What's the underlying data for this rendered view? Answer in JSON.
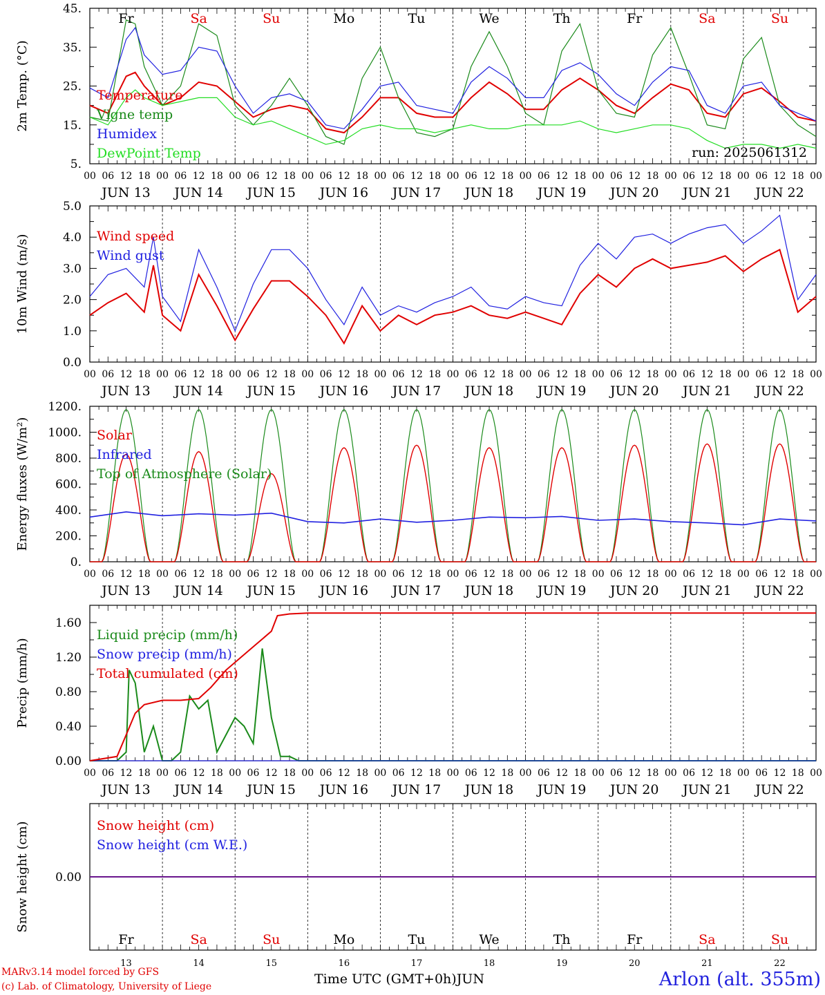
{
  "chart_data": {
    "type": "line",
    "run_label": "run: 2025061312",
    "footer": {
      "model": "MARv3.14 model forced by GFS",
      "copyright": "(c) Lab. of Climatology, University of Liege",
      "station": "Arlon (alt. 355m)",
      "xlabel": "Time UTC (GMT+0h)JUN"
    },
    "days": [
      {
        "date": "JUN 13",
        "num": "13",
        "dow": "Fr",
        "weekend": false
      },
      {
        "date": "JUN 14",
        "num": "14",
        "dow": "Sa",
        "weekend": true
      },
      {
        "date": "JUN 15",
        "num": "15",
        "dow": "Su",
        "weekend": true
      },
      {
        "date": "JUN 16",
        "num": "16",
        "dow": "Mo",
        "weekend": false
      },
      {
        "date": "JUN 17",
        "num": "17",
        "dow": "Tu",
        "weekend": false
      },
      {
        "date": "JUN 18",
        "num": "18",
        "dow": "We",
        "weekend": false
      },
      {
        "date": "JUN 19",
        "num": "19",
        "dow": "Th",
        "weekend": false
      },
      {
        "date": "JUN 20",
        "num": "20",
        "dow": "Fr",
        "weekend": false
      },
      {
        "date": "JUN 21",
        "num": "21",
        "dow": "Sa",
        "weekend": true
      },
      {
        "date": "JUN 22",
        "num": "22",
        "dow": "Su",
        "weekend": true
      }
    ],
    "hour_ticks": [
      "00",
      "06",
      "12",
      "18"
    ],
    "colors": {
      "red": "#e00000",
      "green": "#1a8a1a",
      "blue": "#2020e0",
      "lime": "#22dd22",
      "weekend": "#e00000"
    },
    "panels": [
      {
        "ylabel": "2m Temp. (°C)",
        "ylim": [
          5,
          45
        ],
        "yticks": [
          5,
          15,
          25,
          35,
          45
        ],
        "ytick_labels": [
          "5.",
          "15.",
          "25.",
          "35.",
          "45."
        ],
        "series": [
          {
            "name": "Temperature",
            "color": "#e00000",
            "x": [
              0,
              6,
              12,
              15,
              18,
              24,
              30,
              36,
              42,
              48,
              54,
              60,
              66,
              72,
              78,
              84,
              90,
              96,
              102,
              108,
              114,
              120,
              126,
              132,
              138,
              144,
              150,
              156,
              162,
              168,
              174,
              180,
              186,
              192,
              198,
              204,
              210,
              216,
              222,
              228,
              234,
              240
            ],
            "y": [
              20,
              18,
              27.5,
              28.5,
              25,
              20,
              22,
              26,
              25,
              21,
              17,
              19,
              20,
              19,
              14,
              13,
              17,
              22,
              22,
              18,
              17,
              17,
              22,
              26,
              23,
              19,
              19,
              24,
              27,
              24,
              20,
              18,
              22,
              25.5,
              24,
              18,
              17,
              23,
              24.5,
              21,
              17,
              16
            ]
          },
          {
            "name": "Vigne temp",
            "color": "#1a8a1a",
            "x": [
              0,
              6,
              12,
              15,
              18,
              24,
              30,
              36,
              42,
              48,
              54,
              60,
              66,
              72,
              78,
              84,
              90,
              96,
              102,
              108,
              114,
              120,
              126,
              132,
              138,
              144,
              150,
              156,
              162,
              168,
              174,
              180,
              186,
              192,
              198,
              204,
              210,
              216,
              222,
              228,
              234,
              240
            ],
            "y": [
              17,
              16,
              42,
              41,
              30,
              20,
              25,
              41,
              38,
              20,
              15,
              20,
              27,
              20,
              12,
              10,
              27,
              35,
              22,
              13,
              12,
              14,
              30,
              39,
              30,
              18,
              15,
              34,
              41,
              24,
              18,
              17,
              33,
              40,
              28,
              15,
              14,
              32,
              37.5,
              20,
              15,
              12
            ]
          },
          {
            "name": "Humidex",
            "color": "#2020e0",
            "x": [
              0,
              6,
              12,
              15,
              18,
              24,
              30,
              36,
              42,
              48,
              54,
              60,
              66,
              72,
              78,
              84,
              90,
              96,
              102,
              108,
              114,
              120,
              126,
              132,
              138,
              144,
              150,
              156,
              162,
              168,
              174,
              180,
              186,
              192,
              198,
              204,
              210,
              216,
              222,
              228,
              234,
              240
            ],
            "y": [
              24.5,
              22,
              37,
              40,
              33,
              28,
              29,
              35,
              34,
              25,
              18,
              22,
              23,
              21,
              15,
              14,
              19,
              25,
              26,
              20,
              19,
              18,
              26,
              30,
              27,
              22,
              22,
              29,
              31,
              28,
              23,
              20,
              26,
              30,
              29,
              20,
              18,
              25,
              26,
              20,
              18,
              16
            ]
          },
          {
            "name": "DewPoint Temp",
            "color": "#22dd22",
            "x": [
              0,
              6,
              12,
              15,
              18,
              24,
              30,
              36,
              42,
              48,
              54,
              60,
              66,
              72,
              78,
              84,
              90,
              96,
              102,
              108,
              114,
              120,
              126,
              132,
              138,
              144,
              150,
              156,
              162,
              168,
              174,
              180,
              186,
              192,
              198,
              204,
              210,
              216,
              222,
              228,
              234,
              240
            ],
            "y": [
              17,
              15,
              22,
              24,
              22,
              20,
              21,
              22,
              22,
              17,
              15,
              16,
              14,
              12,
              10,
              11,
              14,
              15,
              14,
              14,
              13,
              14,
              15,
              14,
              14,
              15,
              15,
              15,
              16,
              14,
              13,
              14,
              15,
              15,
              14,
              11,
              9,
              10,
              10,
              9,
              10,
              9
            ]
          }
        ]
      },
      {
        "ylabel": "10m Wind (m/s)",
        "ylim": [
          0,
          5
        ],
        "yticks": [
          0,
          1,
          2,
          3,
          4,
          5
        ],
        "ytick_labels": [
          "0.0",
          "1.0",
          "2.0",
          "3.0",
          "4.0",
          "5.0"
        ],
        "series": [
          {
            "name": "Wind speed",
            "color": "#e00000",
            "x": [
              0,
              6,
              12,
              18,
              21,
              24,
              30,
              36,
              42,
              48,
              54,
              60,
              66,
              72,
              78,
              84,
              90,
              96,
              102,
              108,
              114,
              120,
              126,
              132,
              138,
              144,
              150,
              156,
              162,
              168,
              174,
              180,
              186,
              192,
              198,
              204,
              210,
              216,
              222,
              228,
              234,
              240
            ],
            "y": [
              1.5,
              1.9,
              2.2,
              1.6,
              3.1,
              1.5,
              1.0,
              2.8,
              1.8,
              0.7,
              1.7,
              2.6,
              2.6,
              2.1,
              1.5,
              0.6,
              1.8,
              1.0,
              1.5,
              1.2,
              1.5,
              1.6,
              1.8,
              1.5,
              1.4,
              1.6,
              1.4,
              1.2,
              2.2,
              2.8,
              2.4,
              3.0,
              3.3,
              3.0,
              3.1,
              3.2,
              3.4,
              2.9,
              3.3,
              3.6,
              1.6,
              2.1
            ]
          },
          {
            "name": "Wind gust",
            "color": "#2020e0",
            "x": [
              0,
              6,
              12,
              18,
              21,
              24,
              30,
              36,
              42,
              48,
              54,
              60,
              66,
              72,
              78,
              84,
              90,
              96,
              102,
              108,
              114,
              120,
              126,
              132,
              138,
              144,
              150,
              156,
              162,
              168,
              174,
              180,
              186,
              192,
              198,
              204,
              210,
              216,
              222,
              228,
              234,
              240
            ],
            "y": [
              2.1,
              2.8,
              3.0,
              2.4,
              4.0,
              2.1,
              1.3,
              3.6,
              2.4,
              1.0,
              2.5,
              3.6,
              3.6,
              3.0,
              2.0,
              1.2,
              2.4,
              1.5,
              1.8,
              1.6,
              1.9,
              2.1,
              2.4,
              1.8,
              1.7,
              2.1,
              1.9,
              1.8,
              3.1,
              3.8,
              3.3,
              4.0,
              4.1,
              3.8,
              4.1,
              4.3,
              4.4,
              3.8,
              4.2,
              4.7,
              2.0,
              2.8
            ]
          }
        ]
      },
      {
        "ylabel": "Energy fluxes (W/m²)",
        "ylim": [
          0,
          1200
        ],
        "yticks": [
          0,
          200,
          400,
          600,
          800,
          1000,
          1200
        ],
        "ytick_labels": [
          "0.",
          "200.",
          "400.",
          "600.",
          "800.",
          "1000.",
          "1200."
        ],
        "solar_noon_peaks": {
          "toa": [
            1175,
            1175,
            1175,
            1175,
            1175,
            1175,
            1175,
            1175,
            1175,
            1175
          ],
          "solar": [
            830,
            850,
            680,
            880,
            900,
            880,
            880,
            900,
            910,
            910
          ]
        },
        "series": [
          {
            "name": "Solar",
            "color": "#e00000"
          },
          {
            "name": "Infrared",
            "color": "#2020e0",
            "x": [
              0,
              12,
              24,
              36,
              48,
              60,
              72,
              84,
              96,
              108,
              120,
              132,
              144,
              156,
              168,
              180,
              192,
              204,
              216,
              228,
              240
            ],
            "y": [
              345,
              385,
              355,
              370,
              360,
              375,
              310,
              300,
              330,
              305,
              320,
              345,
              340,
              350,
              320,
              330,
              310,
              300,
              285,
              330,
              315
            ]
          },
          {
            "name": "Top of Atmosphere (Solar)",
            "color": "#1a8a1a"
          }
        ]
      },
      {
        "ylabel": "Precip (mm/h)",
        "ylim": [
          0,
          1.8
        ],
        "yticks": [
          0,
          0.4,
          0.8,
          1.2,
          1.6
        ],
        "ytick_labels": [
          "0.00",
          "0.40",
          "0.80",
          "1.20",
          "1.60"
        ],
        "series": [
          {
            "name": "Liquid precip (mm/h)",
            "color": "#1a8a1a",
            "x": [
              0,
              9,
              12,
              13,
              15,
              18,
              21,
              24,
              27,
              30,
              33,
              36,
              39,
              42,
              45,
              48,
              51,
              54,
              57,
              60,
              63,
              66,
              69,
              72,
              240
            ],
            "y": [
              0,
              0,
              0.1,
              1.05,
              0.9,
              0.1,
              0.4,
              0,
              0,
              0.1,
              0.75,
              0.6,
              0.7,
              0.1,
              0.3,
              0.5,
              0.4,
              0.2,
              1.3,
              0.5,
              0.05,
              0.05,
              0,
              0,
              0
            ]
          },
          {
            "name": "Snow precip (mm/h)",
            "color": "#2020e0",
            "x": [
              0,
              240
            ],
            "y": [
              0,
              0
            ]
          },
          {
            "name": "Total cumulated (cm)",
            "color": "#e00000",
            "x": [
              0,
              9,
              12,
              15,
              18,
              24,
              30,
              36,
              40,
              45,
              50,
              55,
              60,
              62,
              66,
              72,
              240
            ],
            "y": [
              0,
              0.05,
              0.3,
              0.55,
              0.65,
              0.7,
              0.7,
              0.72,
              0.85,
              1.05,
              1.2,
              1.35,
              1.5,
              1.68,
              1.7,
              1.71,
              1.71
            ]
          }
        ]
      },
      {
        "ylabel": "Snow height (cm)",
        "ylim": [
          -1,
          1
        ],
        "yticks": [
          0
        ],
        "ytick_labels": [
          "0.00"
        ],
        "series": [
          {
            "name": "Snow height (cm)",
            "color": "#e00000",
            "x": [
              0,
              240
            ],
            "y": [
              0,
              0
            ]
          },
          {
            "name": "Snow height (cm W.E.)",
            "color": "#2020e0",
            "x": [
              0,
              240
            ],
            "y": [
              0,
              0
            ]
          }
        ]
      }
    ]
  }
}
